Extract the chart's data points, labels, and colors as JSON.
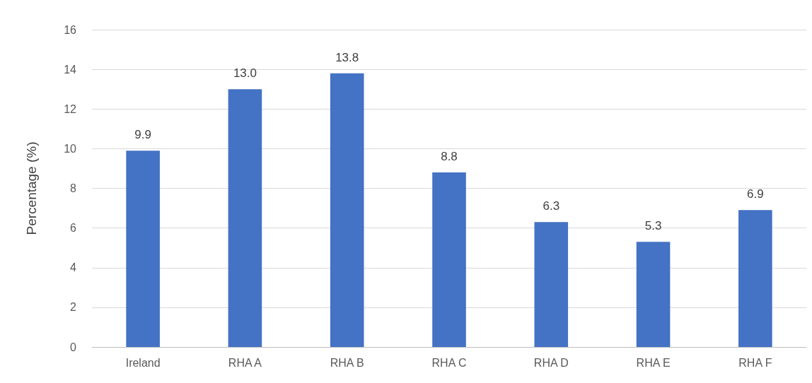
{
  "chart_data": {
    "type": "bar",
    "ylabel": "Percentage (%)",
    "categories": [
      "Ireland",
      "RHA A",
      "RHA B",
      "RHA C",
      "RHA D",
      "RHA E",
      "RHA F"
    ],
    "values": [
      9.9,
      13.0,
      13.8,
      8.8,
      6.3,
      5.3,
      6.9
    ],
    "value_labels": [
      "9.9",
      "13.0",
      "13.8",
      "8.8",
      "6.3",
      "5.3",
      "6.9"
    ],
    "color": "#4472c4",
    "ylim": [
      0,
      16
    ],
    "yticks": [
      0,
      2,
      4,
      6,
      8,
      10,
      12,
      14,
      16
    ],
    "grid": "y"
  }
}
